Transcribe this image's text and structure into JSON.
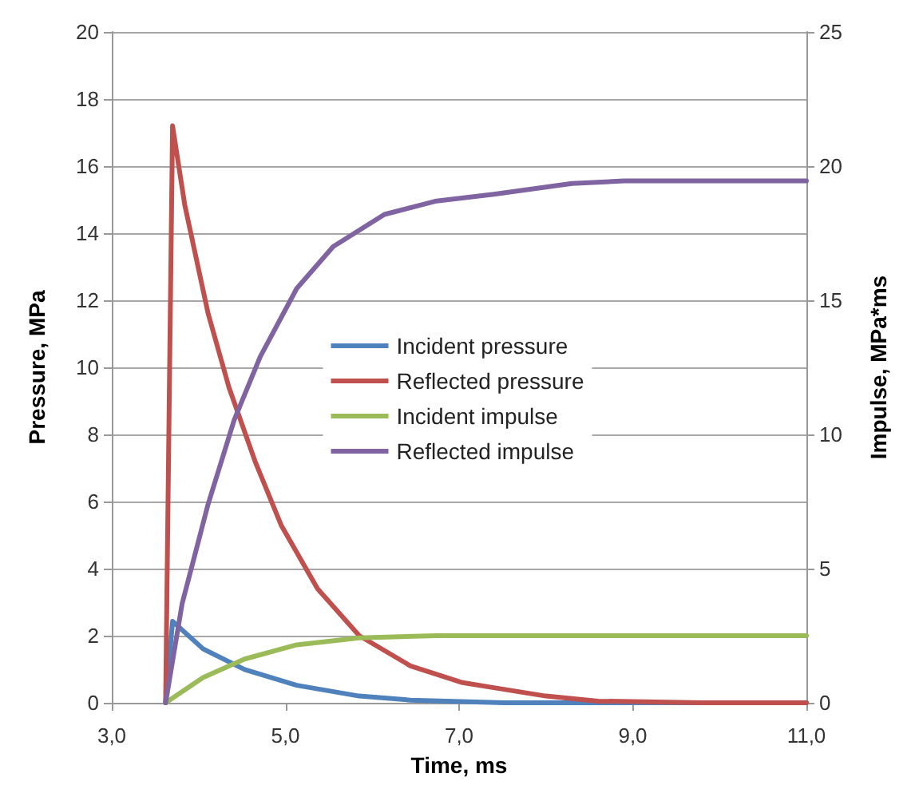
{
  "chart_data": {
    "type": "line",
    "xlabel": "Time, ms",
    "ylabel": "Pressure, MPa",
    "y2label": "Impulse, MPa*ms",
    "xlim": [
      3,
      11
    ],
    "xticks": [
      {
        "value": 3,
        "label": "3,0"
      },
      {
        "value": 5,
        "label": "5,0"
      },
      {
        "value": 7,
        "label": "7,0"
      },
      {
        "value": 9,
        "label": "9,0"
      },
      {
        "value": 11,
        "label": "11,0"
      }
    ],
    "ylim": [
      0,
      20
    ],
    "yticks": [
      0,
      2,
      4,
      6,
      8,
      10,
      12,
      14,
      16,
      18,
      20
    ],
    "y2lim": [
      0,
      25
    ],
    "y2ticks": [
      0,
      5,
      10,
      15,
      20,
      25
    ],
    "grid": "y",
    "legend": "center",
    "marker": "none",
    "line_style": "solid",
    "series": [
      {
        "name": "Incident pressure",
        "color": "#4f81bd",
        "x": [
          3.62,
          3.7,
          4.05,
          4.53,
          5.13,
          5.85,
          6.44,
          7.52,
          11
        ],
        "values": [
          0,
          2.43,
          1.61,
          0.99,
          0.52,
          0.2,
          0.08,
          0,
          0
        ]
      },
      {
        "name": "Reflected pressure",
        "color": "#c0504d",
        "x": [
          3.62,
          3.7,
          3.84,
          4.11,
          4.35,
          4.65,
          4.95,
          5.37,
          5.85,
          6.44,
          7.04,
          7.4,
          8.0,
          8.6,
          9.8,
          11
        ],
        "values": [
          0,
          17.2,
          14.85,
          11.6,
          9.4,
          7.2,
          5.3,
          3.4,
          2.0,
          1.1,
          0.6,
          0.45,
          0.2,
          0.05,
          0,
          0
        ]
      },
      {
        "name": "Incident impulse",
        "color": "#9bbb59",
        "axis": "y2",
        "x": [
          3.62,
          4.05,
          4.53,
          5.13,
          5.85,
          6.74,
          11
        ],
        "values": [
          0,
          0.94,
          1.63,
          2.16,
          2.42,
          2.5,
          2.5
        ]
      },
      {
        "name": "Reflected impulse",
        "color": "#8064a2",
        "axis": "y2",
        "x": [
          3.62,
          3.81,
          4.11,
          4.41,
          4.71,
          5.13,
          5.55,
          6.14,
          6.74,
          7.4,
          8.3,
          8.9,
          11
        ],
        "values": [
          0,
          3.69,
          7.41,
          10.54,
          12.9,
          15.44,
          17.0,
          18.2,
          18.7,
          18.95,
          19.35,
          19.45,
          19.45
        ]
      }
    ]
  }
}
